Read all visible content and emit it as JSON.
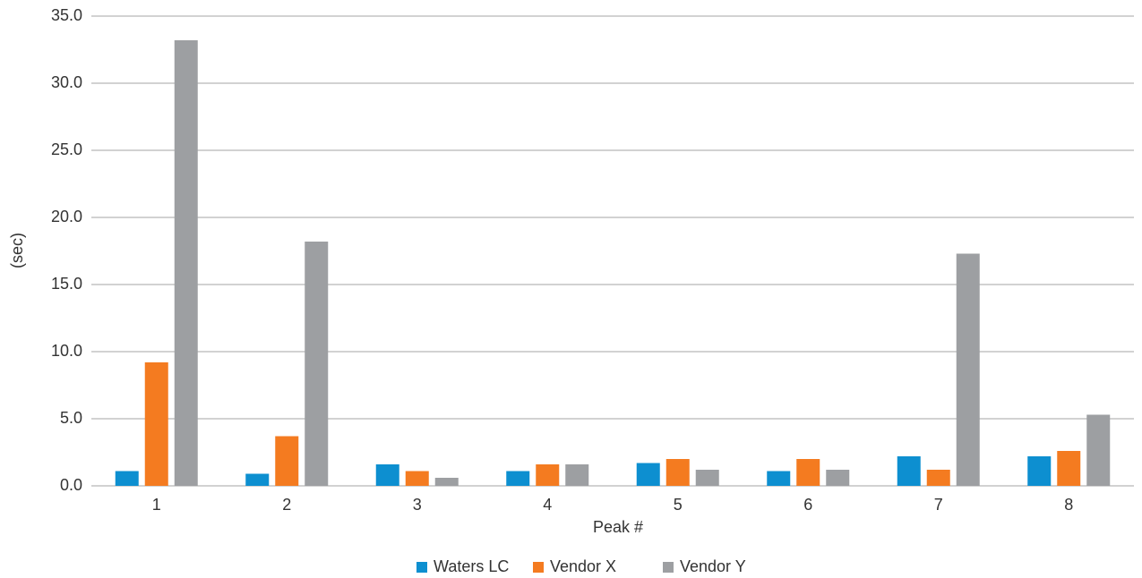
{
  "chart_data": {
    "type": "bar",
    "x_label": "Peak #",
    "y_label": "(sec)",
    "categories": [
      "1",
      "2",
      "3",
      "4",
      "5",
      "6",
      "7",
      "8"
    ],
    "series": [
      {
        "name": "Waters LC",
        "color": "#0d8fd0",
        "values": [
          1.1,
          0.9,
          1.6,
          1.1,
          1.7,
          1.1,
          2.2,
          2.2
        ]
      },
      {
        "name": "Vendor X",
        "color": "#f47b20",
        "values": [
          9.2,
          3.7,
          1.1,
          1.6,
          2.0,
          2.0,
          1.2,
          2.6
        ]
      },
      {
        "name": "Vendor Y",
        "color": "#9d9fa2",
        "values": [
          33.2,
          18.2,
          0.6,
          1.6,
          1.2,
          1.2,
          17.3,
          5.3
        ]
      }
    ],
    "ylim": [
      0,
      35
    ],
    "yticks": [
      {
        "value": 0,
        "label": "0.0"
      },
      {
        "value": 5,
        "label": "5.0"
      },
      {
        "value": 10,
        "label": "10.0"
      },
      {
        "value": 15,
        "label": "15.0"
      },
      {
        "value": 20,
        "label": "20.0"
      },
      {
        "value": 25,
        "label": "25.0"
      },
      {
        "value": 30,
        "label": "30.0"
      },
      {
        "value": 35,
        "label": "35.0"
      }
    ],
    "grid": true,
    "legend": "bottom"
  }
}
